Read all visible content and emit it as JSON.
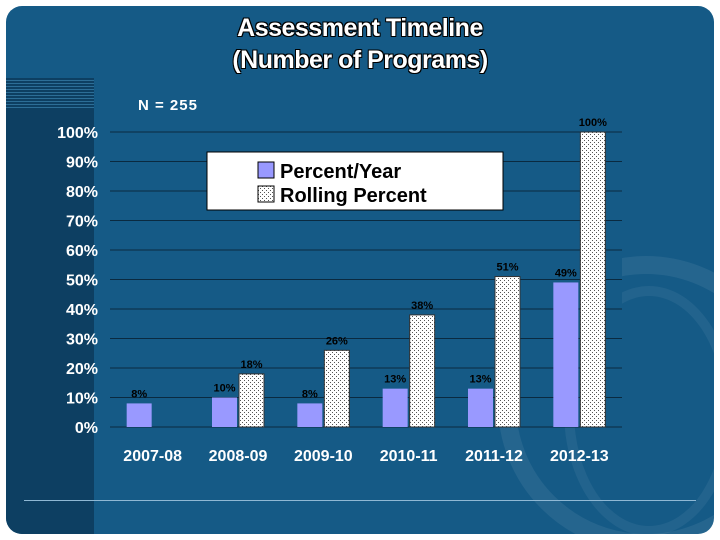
{
  "slide": {
    "title_line1": "Assessment Timeline",
    "title_line2": "(Number of Programs)"
  },
  "chart_data": {
    "type": "bar",
    "categories": [
      "2007-08",
      "2008-09",
      "2009-10",
      "2010-11",
      "2011-12",
      "2012-13"
    ],
    "series": [
      {
        "name": "Percent/Year",
        "values": [
          8,
          10,
          8,
          13,
          13,
          49
        ],
        "labels": [
          "8%",
          "10%",
          "8%",
          "13%",
          "13%",
          "49%"
        ],
        "color": "#9999ff",
        "pattern": "solid"
      },
      {
        "name": "Rolling Percent",
        "values": [
          null,
          18,
          26,
          38,
          51,
          100
        ],
        "labels": [
          "",
          "18%",
          "26%",
          "38%",
          "51%",
          "100%"
        ],
        "color": "#ffffff",
        "pattern": "dotted"
      }
    ],
    "annotation": "N = 255",
    "yticks": [
      "0%",
      "10%",
      "20%",
      "30%",
      "40%",
      "50%",
      "60%",
      "70%",
      "80%",
      "90%",
      "100%"
    ],
    "ylim": [
      0,
      100
    ],
    "grid": true,
    "legend_position": "top-center",
    "title": "",
    "xlabel": "",
    "ylabel": ""
  }
}
